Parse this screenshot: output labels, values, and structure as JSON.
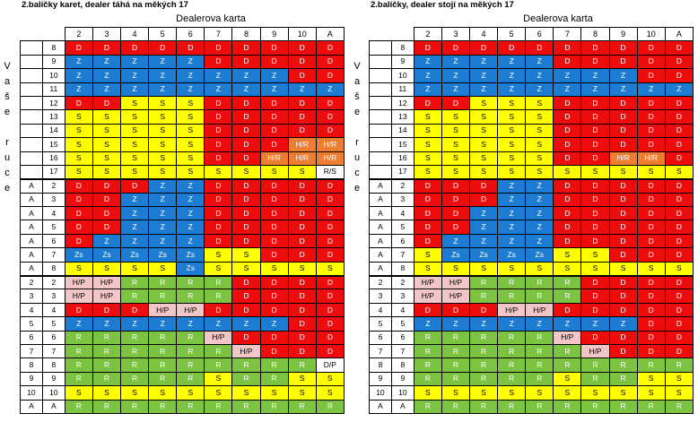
{
  "panels": [
    {
      "title": "2.balíčky karet, dealer táhá na měkých 17",
      "dealer_label": "Dealerova karta",
      "side_letters": [
        "V",
        "a",
        "š",
        "e",
        "",
        "r",
        "u",
        "c",
        "e"
      ],
      "columns": [
        "2",
        "3",
        "4",
        "5",
        "6",
        "7",
        "8",
        "9",
        "10",
        "A"
      ],
      "rows": [
        {
          "a": "",
          "b": "8",
          "cells": [
            "D",
            "D",
            "D",
            "D",
            "D",
            "D",
            "D",
            "D",
            "D",
            "D"
          ]
        },
        {
          "a": "",
          "b": "9",
          "cells": [
            "Z",
            "Z",
            "Z",
            "Z",
            "Z",
            "D",
            "D",
            "D",
            "D",
            "D"
          ]
        },
        {
          "a": "",
          "b": "10",
          "cells": [
            "Z",
            "Z",
            "Z",
            "Z",
            "Z",
            "Z",
            "Z",
            "Z",
            "D",
            "D"
          ]
        },
        {
          "a": "",
          "b": "11",
          "cells": [
            "Z",
            "Z",
            "Z",
            "Z",
            "Z",
            "Z",
            "Z",
            "Z",
            "Z",
            "Z"
          ]
        },
        {
          "a": "",
          "b": "12",
          "cells": [
            "D",
            "D",
            "S",
            "S",
            "S",
            "D",
            "D",
            "D",
            "D",
            "D"
          ]
        },
        {
          "a": "",
          "b": "13",
          "cells": [
            "S",
            "S",
            "S",
            "S",
            "S",
            "D",
            "D",
            "D",
            "D",
            "D"
          ]
        },
        {
          "a": "",
          "b": "14",
          "cells": [
            "S",
            "S",
            "S",
            "S",
            "S",
            "D",
            "D",
            "D",
            "D",
            "D"
          ]
        },
        {
          "a": "",
          "b": "15",
          "cells": [
            "S",
            "S",
            "S",
            "S",
            "S",
            "D",
            "D",
            "D",
            "H/R",
            "H/R"
          ]
        },
        {
          "a": "",
          "b": "16",
          "cells": [
            "S",
            "S",
            "S",
            "S",
            "S",
            "D",
            "D",
            "H/R",
            "H/R",
            "H/R"
          ]
        },
        {
          "a": "",
          "b": "17",
          "cells": [
            "S",
            "S",
            "S",
            "S",
            "S",
            "S",
            "S",
            "S",
            "S",
            "R/S"
          ]
        },
        {
          "a": "A",
          "b": "2",
          "cells": [
            "D",
            "D",
            "D",
            "Z",
            "Z",
            "D",
            "D",
            "D",
            "D",
            "D"
          ]
        },
        {
          "a": "A",
          "b": "3",
          "cells": [
            "D",
            "D",
            "Z",
            "Z",
            "Z",
            "D",
            "D",
            "D",
            "D",
            "D"
          ]
        },
        {
          "a": "A",
          "b": "4",
          "cells": [
            "D",
            "D",
            "Z",
            "Z",
            "Z",
            "D",
            "D",
            "D",
            "D",
            "D"
          ]
        },
        {
          "a": "A",
          "b": "5",
          "cells": [
            "D",
            "D",
            "Z",
            "Z",
            "Z",
            "D",
            "D",
            "D",
            "D",
            "D"
          ]
        },
        {
          "a": "A",
          "b": "6",
          "cells": [
            "D",
            "Z",
            "Z",
            "Z",
            "Z",
            "D",
            "D",
            "D",
            "D",
            "D"
          ]
        },
        {
          "a": "A",
          "b": "7",
          "cells": [
            "Zs",
            "Zs",
            "Zs",
            "Zs",
            "Zs",
            "S",
            "S",
            "D",
            "D",
            "D"
          ]
        },
        {
          "a": "A",
          "b": "8",
          "cells": [
            "S",
            "S",
            "S",
            "S",
            "Zs",
            "S",
            "S",
            "S",
            "S",
            "S"
          ]
        },
        {
          "a": "2",
          "b": "2",
          "cells": [
            "H/P",
            "H/P",
            "R",
            "R",
            "R",
            "R",
            "D",
            "D",
            "D",
            "D"
          ]
        },
        {
          "a": "3",
          "b": "3",
          "cells": [
            "H/P",
            "H/P",
            "R",
            "R",
            "R",
            "R",
            "D",
            "D",
            "D",
            "D"
          ]
        },
        {
          "a": "4",
          "b": "4",
          "cells": [
            "D",
            "D",
            "D",
            "H/P",
            "H/P",
            "D",
            "D",
            "D",
            "D",
            "D"
          ]
        },
        {
          "a": "5",
          "b": "5",
          "cells": [
            "Z",
            "Z",
            "Z",
            "Z",
            "Z",
            "Z",
            "Z",
            "Z",
            "D",
            "D"
          ]
        },
        {
          "a": "6",
          "b": "6",
          "cells": [
            "R",
            "R",
            "R",
            "R",
            "R",
            "H/P",
            "D",
            "D",
            "D",
            "D"
          ]
        },
        {
          "a": "7",
          "b": "7",
          "cells": [
            "R",
            "R",
            "R",
            "R",
            "R",
            "R",
            "H/P",
            "D",
            "D",
            "D"
          ]
        },
        {
          "a": "8",
          "b": "8",
          "cells": [
            "R",
            "R",
            "R",
            "R",
            "R",
            "R",
            "R",
            "R",
            "R",
            "D/P"
          ]
        },
        {
          "a": "9",
          "b": "9",
          "cells": [
            "R",
            "R",
            "R",
            "R",
            "R",
            "S",
            "R",
            "R",
            "S",
            "S"
          ]
        },
        {
          "a": "10",
          "b": "10",
          "cells": [
            "S",
            "S",
            "S",
            "S",
            "S",
            "S",
            "S",
            "S",
            "S",
            "S"
          ]
        },
        {
          "a": "A",
          "b": "A",
          "cells": [
            "R",
            "R",
            "R",
            "R",
            "R",
            "R",
            "R",
            "R",
            "R",
            "R"
          ]
        }
      ]
    },
    {
      "title": "2.balíčky, dealer stojí na měkých 17",
      "dealer_label": "Dealerova karta",
      "side_letters": [
        "V",
        "a",
        "š",
        "e",
        "",
        "r",
        "u",
        "c",
        "e"
      ],
      "columns": [
        "2",
        "3",
        "4",
        "5",
        "6",
        "7",
        "8",
        "9",
        "10",
        "A"
      ],
      "rows": [
        {
          "a": "",
          "b": "8",
          "cells": [
            "D",
            "D",
            "D",
            "D",
            "D",
            "D",
            "D",
            "D",
            "D",
            "D"
          ]
        },
        {
          "a": "",
          "b": "9",
          "cells": [
            "Z",
            "Z",
            "Z",
            "Z",
            "Z",
            "D",
            "D",
            "D",
            "D",
            "D"
          ]
        },
        {
          "a": "",
          "b": "10",
          "cells": [
            "Z",
            "Z",
            "Z",
            "Z",
            "Z",
            "Z",
            "Z",
            "Z",
            "D",
            "D"
          ]
        },
        {
          "a": "",
          "b": "11",
          "cells": [
            "Z",
            "Z",
            "Z",
            "Z",
            "Z",
            "Z",
            "Z",
            "Z",
            "Z",
            "Z"
          ]
        },
        {
          "a": "",
          "b": "12",
          "cells": [
            "D",
            "D",
            "S",
            "S",
            "S",
            "D",
            "D",
            "D",
            "D",
            "D"
          ]
        },
        {
          "a": "",
          "b": "13",
          "cells": [
            "S",
            "S",
            "S",
            "S",
            "S",
            "D",
            "D",
            "D",
            "D",
            "D"
          ]
        },
        {
          "a": "",
          "b": "14",
          "cells": [
            "S",
            "S",
            "S",
            "S",
            "S",
            "D",
            "D",
            "D",
            "D",
            "D"
          ]
        },
        {
          "a": "",
          "b": "15",
          "cells": [
            "S",
            "S",
            "S",
            "S",
            "S",
            "D",
            "D",
            "D",
            "D",
            "D"
          ]
        },
        {
          "a": "",
          "b": "16",
          "cells": [
            "S",
            "S",
            "S",
            "S",
            "S",
            "D",
            "D",
            "H/R",
            "H/R",
            "D"
          ]
        },
        {
          "a": "",
          "b": "17",
          "cells": [
            "S",
            "S",
            "S",
            "S",
            "S",
            "S",
            "S",
            "S",
            "S",
            "S"
          ]
        },
        {
          "a": "A",
          "b": "2",
          "cells": [
            "D",
            "D",
            "D",
            "Z",
            "Z",
            "D",
            "D",
            "D",
            "D",
            "D"
          ]
        },
        {
          "a": "A",
          "b": "3",
          "cells": [
            "D",
            "D",
            "D",
            "Z",
            "Z",
            "D",
            "D",
            "D",
            "D",
            "D"
          ]
        },
        {
          "a": "A",
          "b": "4",
          "cells": [
            "D",
            "D",
            "Z",
            "Z",
            "Z",
            "D",
            "D",
            "D",
            "D",
            "D"
          ]
        },
        {
          "a": "A",
          "b": "5",
          "cells": [
            "D",
            "D",
            "Z",
            "Z",
            "Z",
            "D",
            "D",
            "D",
            "D",
            "D"
          ]
        },
        {
          "a": "A",
          "b": "6",
          "cells": [
            "D",
            "Z",
            "Z",
            "Z",
            "Z",
            "D",
            "D",
            "D",
            "D",
            "D"
          ]
        },
        {
          "a": "A",
          "b": "7",
          "cells": [
            "S",
            "Zs",
            "Zs",
            "Zs",
            "Zs",
            "S",
            "S",
            "D",
            "D",
            "D"
          ]
        },
        {
          "a": "A",
          "b": "8",
          "cells": [
            "S",
            "S",
            "S",
            "S",
            "S",
            "S",
            "S",
            "S",
            "S",
            "S"
          ]
        },
        {
          "a": "2",
          "b": "2",
          "cells": [
            "H/P",
            "H/P",
            "R",
            "R",
            "R",
            "R",
            "D",
            "D",
            "D",
            "D"
          ]
        },
        {
          "a": "3",
          "b": "3",
          "cells": [
            "H/P",
            "H/P",
            "R",
            "R",
            "R",
            "R",
            "D",
            "D",
            "D",
            "D"
          ]
        },
        {
          "a": "4",
          "b": "4",
          "cells": [
            "D",
            "D",
            "D",
            "H/P",
            "H/P",
            "D",
            "D",
            "D",
            "D",
            "D"
          ]
        },
        {
          "a": "5",
          "b": "5",
          "cells": [
            "Z",
            "Z",
            "Z",
            "Z",
            "Z",
            "Z",
            "Z",
            "Z",
            "D",
            "D"
          ]
        },
        {
          "a": "6",
          "b": "6",
          "cells": [
            "R",
            "R",
            "R",
            "R",
            "R",
            "H/P",
            "D",
            "D",
            "D",
            "D"
          ]
        },
        {
          "a": "7",
          "b": "7",
          "cells": [
            "R",
            "R",
            "R",
            "R",
            "R",
            "R",
            "H/P",
            "D",
            "D",
            "D"
          ]
        },
        {
          "a": "8",
          "b": "8",
          "cells": [
            "R",
            "R",
            "R",
            "R",
            "R",
            "R",
            "R",
            "R",
            "R",
            "R"
          ]
        },
        {
          "a": "9",
          "b": "9",
          "cells": [
            "R",
            "R",
            "R",
            "R",
            "R",
            "S",
            "R",
            "R",
            "S",
            "S"
          ]
        },
        {
          "a": "10",
          "b": "10",
          "cells": [
            "S",
            "S",
            "S",
            "S",
            "S",
            "S",
            "S",
            "S",
            "S",
            "S"
          ]
        },
        {
          "a": "A",
          "b": "A",
          "cells": [
            "R",
            "R",
            "R",
            "R",
            "R",
            "R",
            "R",
            "R",
            "R",
            "R"
          ]
        }
      ]
    }
  ]
}
